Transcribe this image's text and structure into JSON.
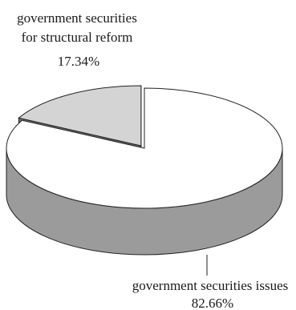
{
  "chart_data": {
    "type": "pie",
    "style": "3d-exploded",
    "slices": [
      {
        "label": "government securities for structural reform",
        "label_lines": [
          "government securities",
          "for structural reform"
        ],
        "value": 17.34,
        "value_label": "17.34%",
        "color": "#d4d4d4",
        "side_color": "#6e6e6e",
        "exploded": true
      },
      {
        "label": "government securities issues",
        "label_lines": [
          "government securities issues"
        ],
        "value": 82.66,
        "value_label": "82.66%",
        "color": "#ffffff",
        "side_color": "#9b9b9b",
        "exploded": false
      }
    ]
  }
}
